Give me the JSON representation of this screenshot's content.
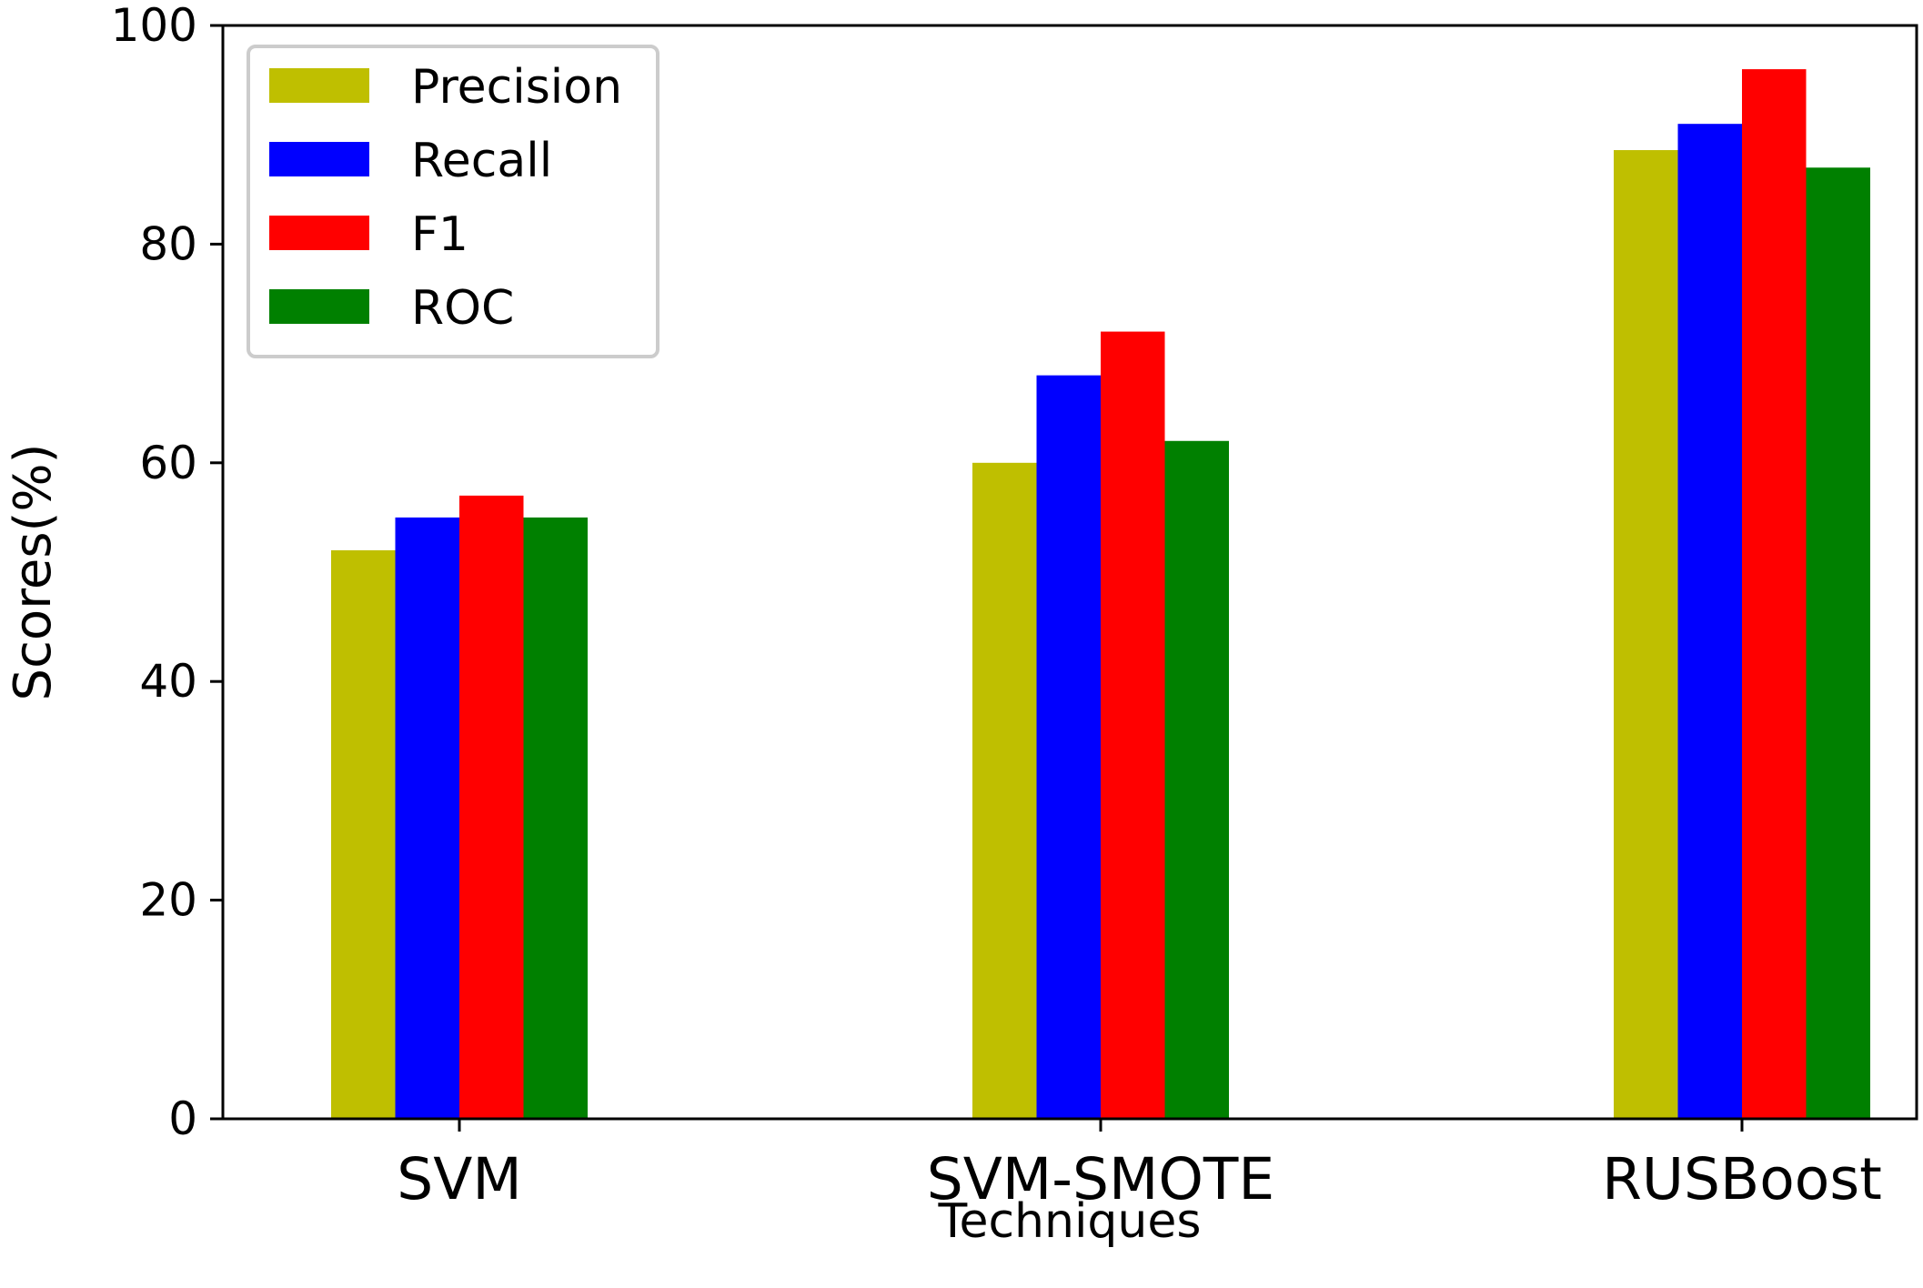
{
  "chart_data": {
    "type": "bar",
    "title": "",
    "xlabel": "Techniques",
    "ylabel": "Scores(%)",
    "ylim": [
      0,
      100
    ],
    "yticks": [
      "0",
      "20",
      "40",
      "60",
      "80",
      "100"
    ],
    "categories": [
      "SVM",
      "SVM-SMOTE",
      "RUSBoost"
    ],
    "series": [
      {
        "name": "Precision",
        "color": "#bfbf00",
        "values": [
          52,
          60,
          88.6
        ]
      },
      {
        "name": "Recall",
        "color": "#0000ff",
        "values": [
          55,
          68,
          91
        ]
      },
      {
        "name": "F1",
        "color": "#ff0000",
        "values": [
          57,
          72,
          96
        ]
      },
      {
        "name": "ROC",
        "color": "#008000",
        "values": [
          55,
          62,
          87
        ]
      }
    ],
    "legend_position": "top-left",
    "grid": false
  }
}
